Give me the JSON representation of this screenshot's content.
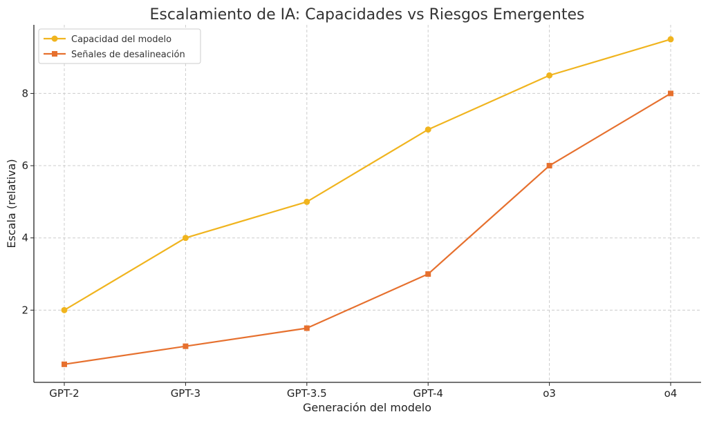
{
  "chart_data": {
    "type": "line",
    "title": "Escalamiento de IA: Capacidades vs Riesgos Emergentes",
    "xlabel": "Generación del modelo",
    "ylabel": "Escala (relativa)",
    "categories": [
      "GPT-2",
      "GPT-3",
      "GPT-3.5",
      "GPT-4",
      "o3",
      "o4"
    ],
    "yticks": [
      2,
      4,
      6,
      8
    ],
    "ylim": [
      0,
      9.9
    ],
    "grid": true,
    "legend_position": "top-left",
    "series": [
      {
        "name": "Capacidad del modelo",
        "values": [
          2,
          4,
          5,
          7,
          8.5,
          9.5
        ],
        "color": "#F0B41E",
        "marker": "circle"
      },
      {
        "name": "Señales de desalineación",
        "values": [
          0.5,
          1,
          1.5,
          3,
          6,
          8
        ],
        "color": "#E6702E",
        "marker": "square"
      }
    ]
  }
}
